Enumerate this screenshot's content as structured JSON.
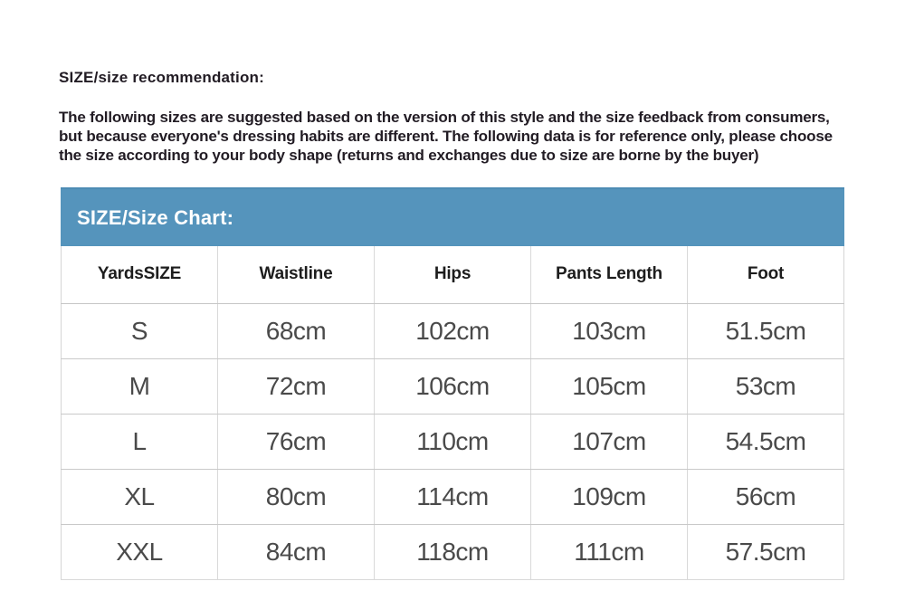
{
  "recommendation": {
    "title": "SIZE/size recommendation:",
    "description": "The following sizes are suggested based on the version of this style and the size feedback from consumers, but because everyone's dressing habits are different. The following data is for reference only, please choose the size according to your body shape (returns and exchanges due to size are borne by the buyer)"
  },
  "size_chart": {
    "banner": "SIZE/Size Chart:",
    "columns": [
      "YardsSIZE",
      "Waistline",
      "Hips",
      "Pants Length",
      "Foot"
    ],
    "rows": [
      [
        "S",
        "68cm",
        "102cm",
        "103cm",
        "51.5cm"
      ],
      [
        "M",
        "72cm",
        "106cm",
        "105cm",
        "53cm"
      ],
      [
        "L",
        "76cm",
        "110cm",
        "107cm",
        "54.5cm"
      ],
      [
        "XL",
        "80cm",
        "114cm",
        "109cm",
        "56cm"
      ],
      [
        "XXL",
        "84cm",
        "118cm",
        "111cm",
        "57.5cm"
      ]
    ]
  },
  "colors": {
    "banner_bg": "#5594bc",
    "banner_text": "#ffffff",
    "header_text": "#1d1d1d",
    "cell_text": "#4a4a4a",
    "border": "#d9d9d9",
    "page_bg": "#ffffff"
  }
}
